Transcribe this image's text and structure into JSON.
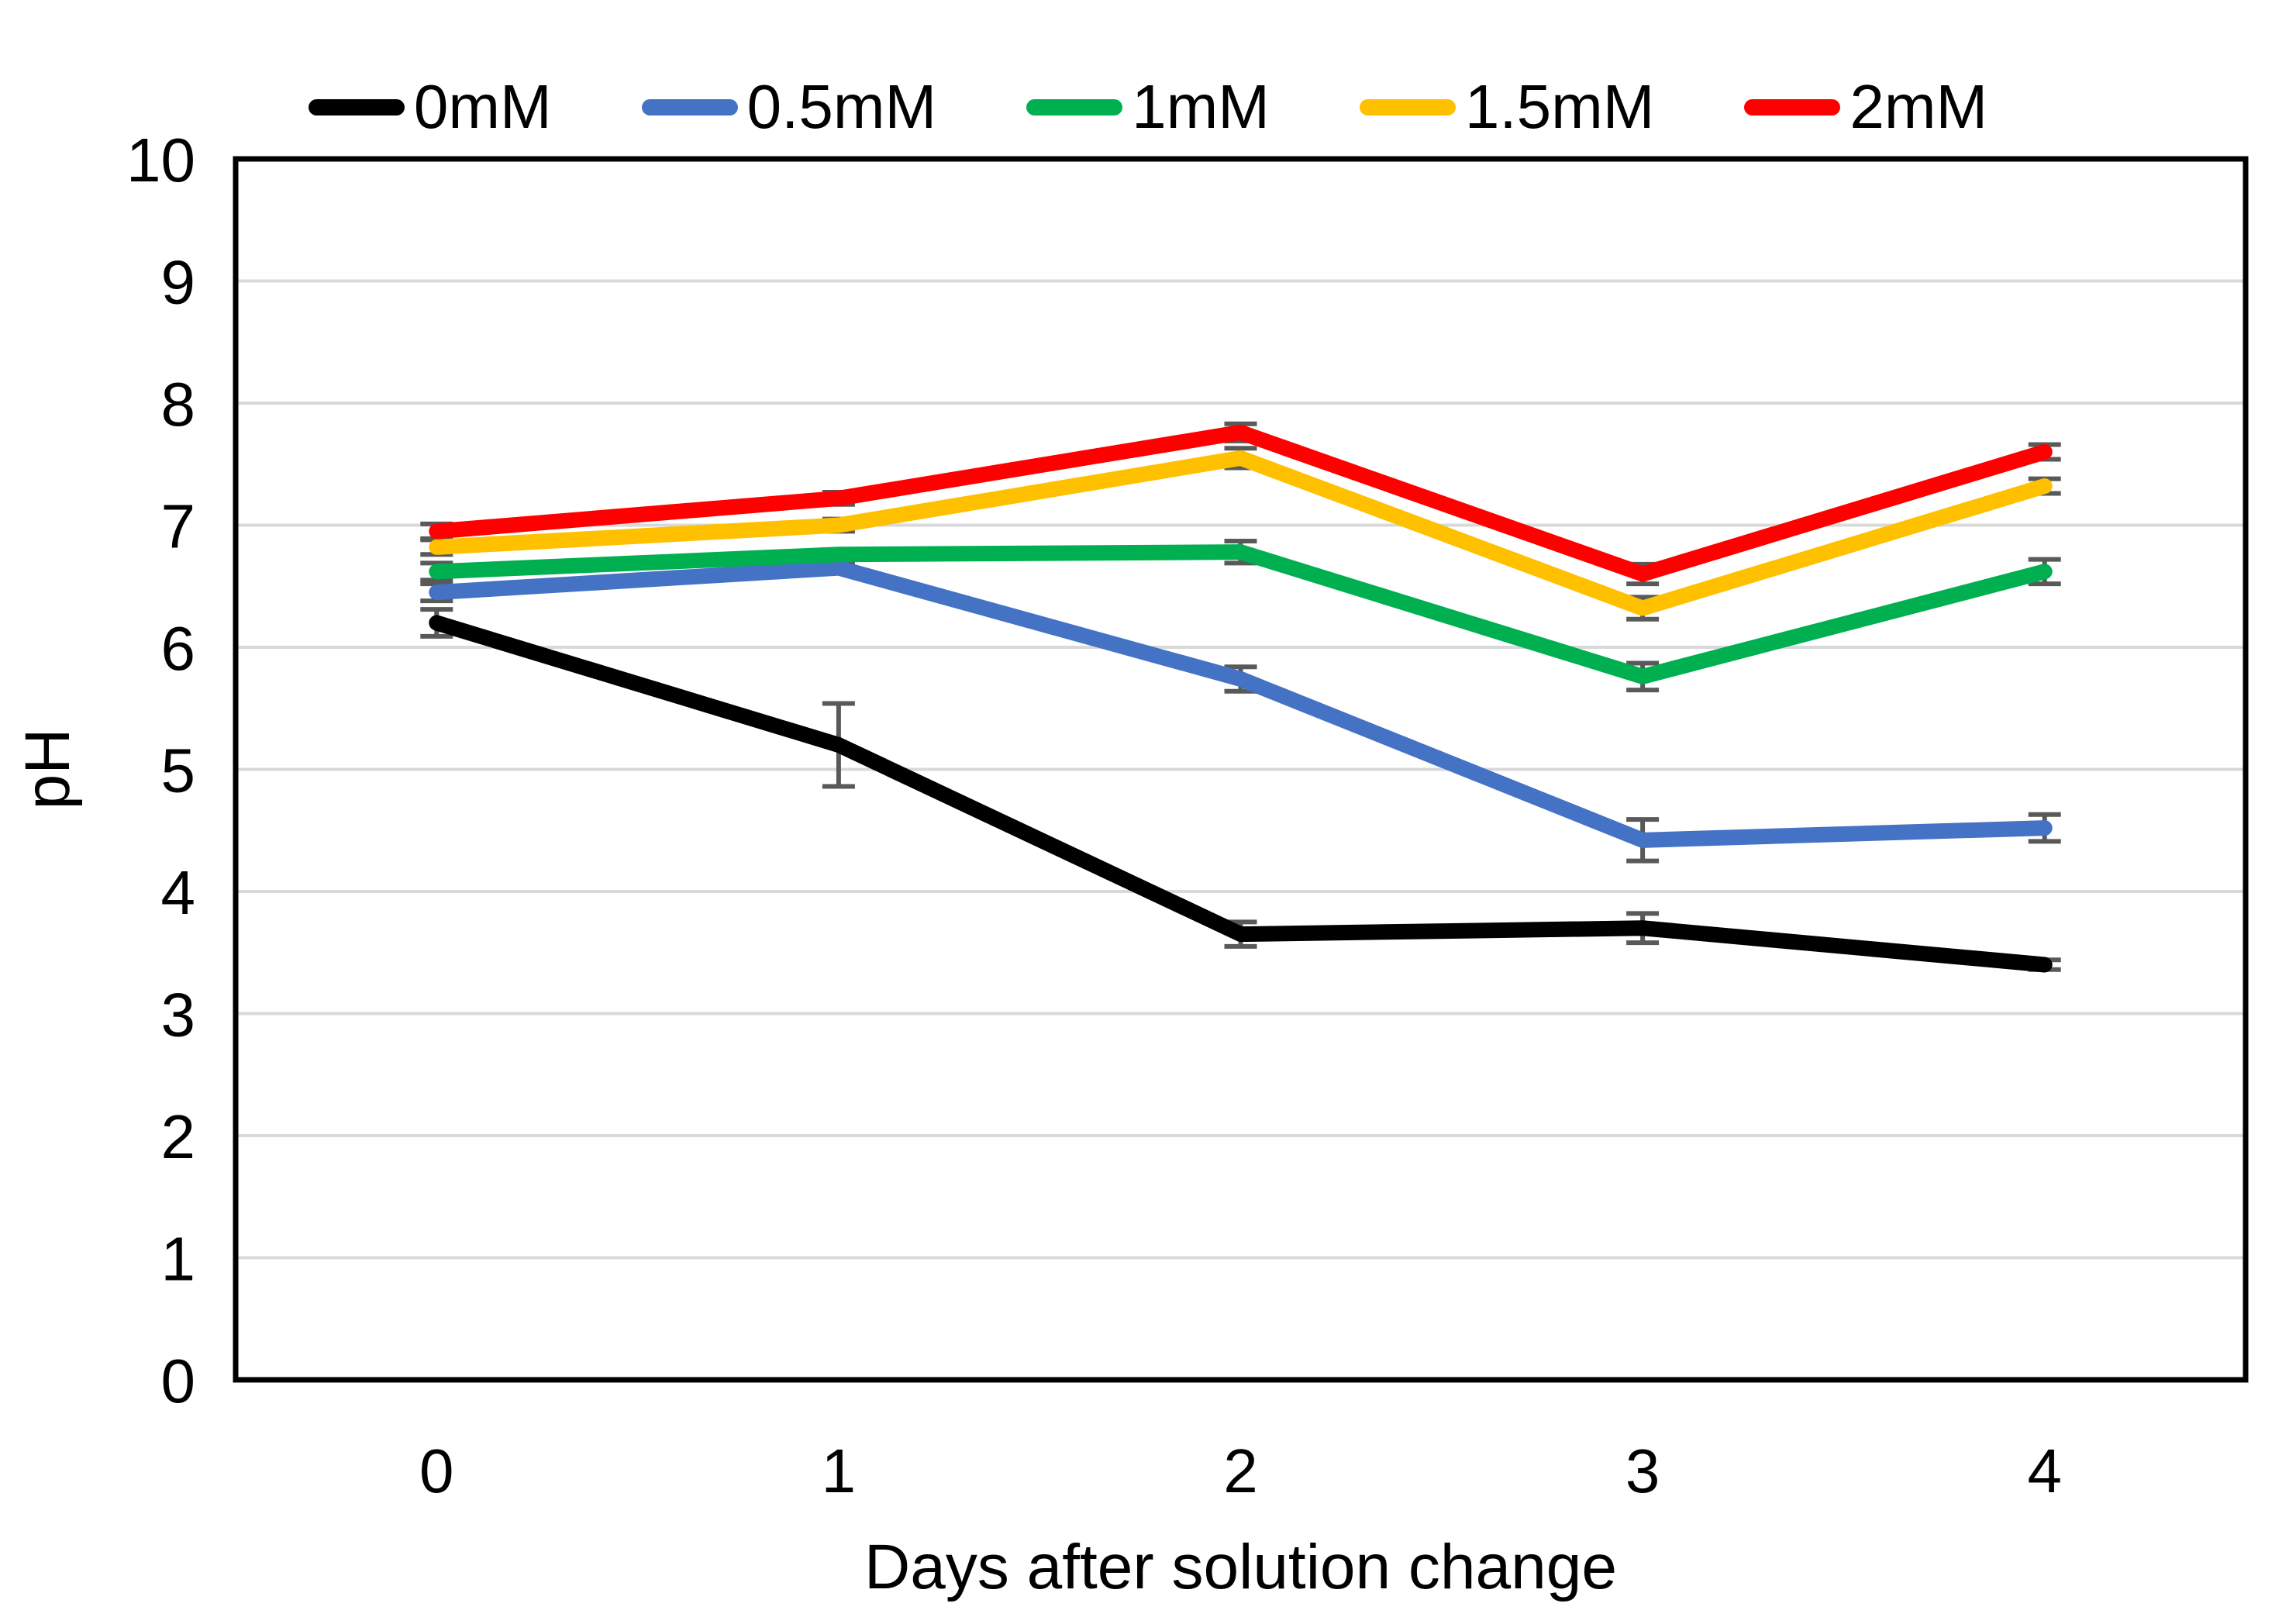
{
  "chart_data": {
    "type": "line",
    "title": "",
    "xlabel": "Days after solution change",
    "ylabel": "pH",
    "categories": [
      "0",
      "1",
      "2",
      "3",
      "4"
    ],
    "x": [
      0,
      1,
      2,
      3,
      4
    ],
    "ylim": [
      0,
      10
    ],
    "ytick_step": 1,
    "yticks": [
      "0",
      "1",
      "2",
      "3",
      "4",
      "5",
      "6",
      "7",
      "8",
      "9",
      "10"
    ],
    "grid": true,
    "legend_position": "top",
    "gridline_color": "#D9D9D9",
    "axis_border_color": "#000000",
    "error_bar_color": "#595959",
    "series": [
      {
        "name": "0mM",
        "color": "#000000",
        "values": [
          6.2,
          5.2,
          3.65,
          3.7,
          3.4
        ],
        "error": [
          0.11,
          0.34,
          0.1,
          0.12,
          0.04
        ]
      },
      {
        "name": "0.5mM",
        "color": "#4472C4",
        "values": [
          6.45,
          6.65,
          5.74,
          4.42,
          4.52
        ],
        "error": [
          0.07,
          0.04,
          0.1,
          0.17,
          0.11
        ]
      },
      {
        "name": "1mM",
        "color": "#00B050",
        "values": [
          6.62,
          6.76,
          6.78,
          5.76,
          6.62
        ],
        "error": [
          0.07,
          0.04,
          0.09,
          0.11,
          0.1
        ]
      },
      {
        "name": "1.5mM",
        "color": "#FFC000",
        "values": [
          6.82,
          7.0,
          7.55,
          6.32,
          7.32
        ],
        "error": [
          0.06,
          0.05,
          0.08,
          0.09,
          0.06
        ]
      },
      {
        "name": "2mM",
        "color": "#FF0000",
        "values": [
          6.95,
          7.22,
          7.76,
          6.6,
          7.6
        ],
        "error": [
          0.06,
          0.05,
          0.07,
          0.08,
          0.06
        ]
      }
    ]
  }
}
